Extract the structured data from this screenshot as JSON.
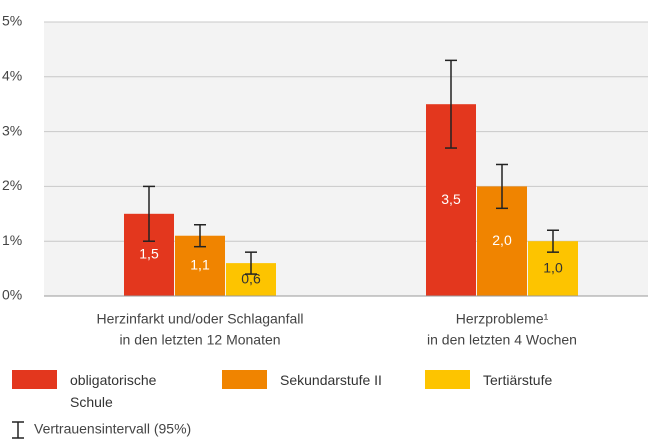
{
  "chart_data": {
    "type": "bar",
    "categories": [
      [
        "Herzinfarkt und/oder Schlaganfall",
        "in den letzten 12 Monaten"
      ],
      [
        "Herzprobleme¹",
        "in den letzten 4 Wochen"
      ]
    ],
    "series": [
      {
        "name": "obligatorische Schule",
        "color": "#e3371e",
        "label_color": "#ffffff",
        "values": [
          1.5,
          3.5
        ],
        "value_labels": [
          "1,5",
          "3,5"
        ],
        "errors": [
          0.5,
          0.8
        ]
      },
      {
        "name": "Sekundarstufe II",
        "color": "#f08400",
        "label_color": "#ffffff",
        "values": [
          1.1,
          2.0
        ],
        "value_labels": [
          "1,1",
          "2,0"
        ],
        "errors": [
          0.2,
          0.4
        ]
      },
      {
        "name": "Tertiärstufe",
        "color": "#fdc400",
        "label_color": "#333333",
        "values": [
          0.6,
          1.0
        ],
        "value_labels": [
          "0,6",
          "1,0"
        ],
        "errors": [
          0.2,
          0.2
        ]
      }
    ],
    "ylim": [
      0,
      5
    ],
    "yticks": [
      {
        "value": 0,
        "label": "0%"
      },
      {
        "value": 1,
        "label": "1%"
      },
      {
        "value": 2,
        "label": "2%"
      },
      {
        "value": 3,
        "label": "3%"
      },
      {
        "value": 4,
        "label": "4%"
      },
      {
        "value": 5,
        "label": "5%"
      }
    ],
    "grid": true,
    "error_bar_legend": "Vertrauensintervall (95%)"
  }
}
